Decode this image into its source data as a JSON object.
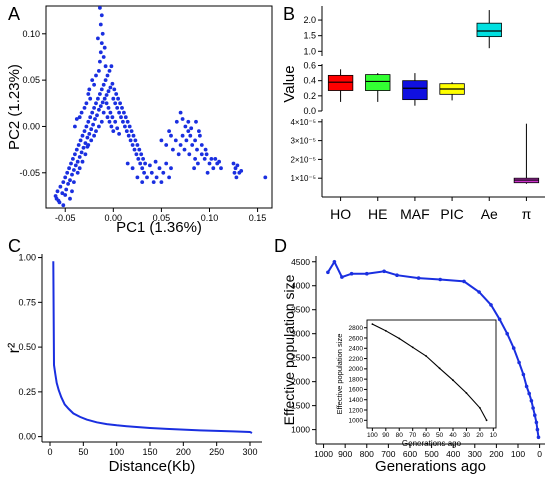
{
  "chart_data": [
    {
      "panel": "A",
      "type": "scatter",
      "xlabel": "PC1 (1.36%)",
      "ylabel": "PC2 (1.23%)",
      "xlim": [
        -0.07,
        0.165
      ],
      "ylim": [
        -0.088,
        0.13
      ],
      "xticks": [
        -0.05,
        0.0,
        0.05,
        0.1,
        0.15
      ],
      "xtick_labels": [
        "-0.05",
        "0.00",
        "0.05",
        "0.10",
        "0.15"
      ],
      "yticks": [
        -0.05,
        0.0,
        0.05,
        0.1
      ],
      "ytick_labels": [
        "-0.05",
        "0.00",
        "0.05",
        "0.10"
      ],
      "color": "#1a2fe0",
      "points": [
        [
          -0.06,
          -0.075
        ],
        [
          -0.058,
          -0.07
        ],
        [
          -0.057,
          -0.08
        ],
        [
          -0.055,
          -0.065
        ],
        [
          -0.053,
          -0.072
        ],
        [
          -0.052,
          -0.06
        ],
        [
          -0.05,
          -0.055
        ],
        [
          -0.049,
          -0.068
        ],
        [
          -0.048,
          -0.05
        ],
        [
          -0.047,
          -0.062
        ],
        [
          -0.046,
          -0.045
        ],
        [
          -0.045,
          -0.058
        ],
        [
          -0.044,
          -0.04
        ],
        [
          -0.043,
          -0.052
        ],
        [
          -0.042,
          -0.035
        ],
        [
          -0.041,
          -0.047
        ],
        [
          -0.04,
          -0.03
        ],
        [
          -0.039,
          -0.042
        ],
        [
          -0.038,
          -0.025
        ],
        [
          -0.037,
          -0.038
        ],
        [
          -0.036,
          -0.02
        ],
        [
          -0.035,
          -0.033
        ],
        [
          -0.034,
          -0.015
        ],
        [
          -0.033,
          -0.028
        ],
        [
          -0.032,
          -0.01
        ],
        [
          -0.031,
          -0.023
        ],
        [
          -0.03,
          -0.005
        ],
        [
          -0.029,
          -0.018
        ],
        [
          -0.028,
          0.0
        ],
        [
          -0.027,
          -0.012
        ],
        [
          -0.026,
          0.005
        ],
        [
          -0.025,
          -0.008
        ],
        [
          -0.024,
          0.01
        ],
        [
          -0.023,
          -0.003
        ],
        [
          -0.022,
          0.015
        ],
        [
          -0.021,
          0.002
        ],
        [
          -0.02,
          0.02
        ],
        [
          -0.019,
          0.008
        ],
        [
          -0.018,
          0.025
        ],
        [
          -0.017,
          0.012
        ],
        [
          -0.016,
          0.03
        ],
        [
          -0.015,
          0.018
        ],
        [
          -0.014,
          0.035
        ],
        [
          -0.013,
          0.022
        ],
        [
          -0.012,
          0.04
        ],
        [
          -0.011,
          0.026
        ],
        [
          -0.01,
          0.045
        ],
        [
          -0.009,
          0.03
        ],
        [
          -0.008,
          0.05
        ],
        [
          -0.007,
          0.034
        ],
        [
          -0.006,
          0.055
        ],
        [
          -0.005,
          0.038
        ],
        [
          -0.004,
          0.06
        ],
        [
          -0.003,
          0.042
        ],
        [
          -0.002,
          0.065
        ],
        [
          -0.001,
          0.046
        ],
        [
          0.0,
          0.03
        ],
        [
          0.001,
          0.04
        ],
        [
          0.002,
          0.025
        ],
        [
          0.003,
          0.035
        ],
        [
          0.004,
          0.02
        ],
        [
          0.005,
          0.03
        ],
        [
          0.006,
          0.015
        ],
        [
          0.007,
          0.025
        ],
        [
          0.008,
          0.01
        ],
        [
          0.009,
          0.02
        ],
        [
          0.01,
          0.005
        ],
        [
          0.011,
          0.015
        ],
        [
          0.012,
          0.0
        ],
        [
          0.013,
          0.01
        ],
        [
          0.014,
          -0.005
        ],
        [
          0.015,
          0.005
        ],
        [
          0.016,
          -0.01
        ],
        [
          0.017,
          0.0
        ],
        [
          0.018,
          -0.015
        ],
        [
          0.019,
          -0.005
        ],
        [
          0.02,
          -0.02
        ],
        [
          0.021,
          -0.01
        ],
        [
          0.022,
          -0.025
        ],
        [
          0.023,
          -0.015
        ],
        [
          0.024,
          -0.03
        ],
        [
          0.025,
          -0.02
        ],
        [
          0.026,
          -0.035
        ],
        [
          0.027,
          -0.025
        ],
        [
          0.028,
          -0.04
        ],
        [
          0.029,
          -0.03
        ],
        [
          0.03,
          -0.045
        ],
        [
          0.031,
          -0.035
        ],
        [
          0.032,
          -0.05
        ],
        [
          0.033,
          -0.04
        ],
        [
          -0.015,
          0.06
        ],
        [
          -0.014,
          0.07
        ],
        [
          -0.013,
          0.08
        ],
        [
          -0.012,
          0.09
        ],
        [
          -0.011,
          0.1
        ],
        [
          -0.013,
          0.11
        ],
        [
          -0.012,
          0.12
        ],
        [
          -0.014,
          0.128
        ],
        [
          -0.01,
          0.075
        ],
        [
          -0.009,
          0.085
        ],
        [
          -0.016,
          0.095
        ],
        [
          -0.008,
          0.065
        ],
        [
          -0.02,
          0.045
        ],
        [
          -0.018,
          0.055
        ],
        [
          -0.022,
          0.05
        ],
        [
          -0.025,
          0.04
        ],
        [
          -0.024,
          0.03
        ],
        [
          -0.03,
          0.02
        ],
        [
          -0.035,
          0.01
        ],
        [
          -0.04,
          0.0
        ],
        [
          -0.038,
          0.008
        ],
        [
          -0.033,
          0.015
        ],
        [
          -0.028,
          0.025
        ],
        [
          -0.026,
          0.035
        ],
        [
          -0.005,
          0.02
        ],
        [
          -0.003,
          0.015
        ],
        [
          -0.001,
          0.01
        ],
        [
          0.002,
          0.005
        ],
        [
          0.004,
          -0.002
        ],
        [
          0.006,
          -0.008
        ],
        [
          -0.007,
          0.025
        ],
        [
          -0.006,
          0.01
        ],
        [
          -0.004,
          0.005
        ],
        [
          -0.002,
          0.0
        ],
        [
          0.0,
          -0.005
        ],
        [
          -0.01,
          0.015
        ],
        [
          -0.012,
          0.005
        ],
        [
          -0.015,
          0.0
        ],
        [
          -0.018,
          -0.005
        ],
        [
          -0.02,
          -0.01
        ],
        [
          -0.023,
          -0.015
        ],
        [
          -0.026,
          -0.02
        ],
        [
          0.04,
          -0.05
        ],
        [
          0.042,
          -0.06
        ],
        [
          0.045,
          -0.055
        ],
        [
          0.048,
          -0.045
        ],
        [
          0.05,
          -0.06
        ],
        [
          0.052,
          -0.05
        ],
        [
          0.055,
          -0.04
        ],
        [
          0.058,
          -0.055
        ],
        [
          0.06,
          -0.045
        ],
        [
          0.038,
          -0.042
        ],
        [
          0.035,
          -0.055
        ],
        [
          0.044,
          -0.038
        ],
        [
          0.05,
          -0.015
        ],
        [
          0.055,
          -0.02
        ],
        [
          0.06,
          -0.01
        ],
        [
          0.065,
          -0.015
        ],
        [
          0.062,
          -0.025
        ],
        [
          0.058,
          -0.005
        ],
        [
          0.07,
          -0.02
        ],
        [
          0.072,
          -0.01
        ],
        [
          0.068,
          -0.03
        ],
        [
          0.074,
          -0.025
        ],
        [
          0.076,
          -0.015
        ],
        [
          0.078,
          -0.005
        ],
        [
          0.08,
          -0.01
        ],
        [
          0.082,
          -0.02
        ],
        [
          0.079,
          -0.03
        ],
        [
          0.085,
          -0.015
        ],
        [
          0.087,
          -0.025
        ],
        [
          0.09,
          -0.01
        ],
        [
          0.085,
          -0.035
        ],
        [
          0.088,
          -0.04
        ],
        [
          0.092,
          -0.03
        ],
        [
          0.084,
          -0.045
        ],
        [
          0.095,
          -0.035
        ],
        [
          0.097,
          -0.03
        ],
        [
          0.1,
          -0.04
        ],
        [
          0.102,
          -0.035
        ],
        [
          0.104,
          -0.045
        ],
        [
          0.098,
          -0.05
        ],
        [
          0.106,
          -0.035
        ],
        [
          0.108,
          -0.04
        ],
        [
          0.11,
          -0.038
        ],
        [
          0.112,
          -0.045
        ],
        [
          0.096,
          -0.025
        ],
        [
          0.092,
          -0.02
        ],
        [
          0.089,
          -0.005
        ],
        [
          0.086,
          0.005
        ],
        [
          0.075,
          0.0
        ],
        [
          0.072,
          0.008
        ],
        [
          0.07,
          0.015
        ],
        [
          0.078,
          0.005
        ],
        [
          0.081,
          -0.002
        ],
        [
          0.066,
          0.005
        ],
        [
          0.125,
          -0.04
        ],
        [
          0.127,
          -0.045
        ],
        [
          0.129,
          -0.042
        ],
        [
          0.131,
          -0.05
        ],
        [
          0.133,
          -0.048
        ],
        [
          0.128,
          -0.055
        ],
        [
          0.126,
          -0.05
        ],
        [
          0.158,
          -0.055
        ],
        [
          0.03,
          -0.06
        ],
        [
          0.025,
          -0.055
        ],
        [
          0.02,
          -0.045
        ],
        [
          0.015,
          -0.04
        ],
        [
          -0.045,
          -0.078
        ],
        [
          -0.052,
          -0.085
        ],
        [
          -0.056,
          -0.082
        ],
        [
          -0.059,
          -0.078
        ],
        [
          -0.05,
          -0.074
        ],
        [
          -0.043,
          -0.07
        ],
        [
          -0.041,
          -0.06
        ],
        [
          -0.037,
          -0.05
        ],
        [
          -0.035,
          -0.045
        ],
        [
          -0.032,
          -0.038
        ],
        [
          -0.029,
          -0.03
        ],
        [
          -0.027,
          -0.022
        ]
      ]
    },
    {
      "panel": "B",
      "type": "box",
      "ylabel": "Value",
      "categories": [
        "HO",
        "HE",
        "MAF",
        "PIC",
        "Ae",
        "π"
      ],
      "boxes": [
        {
          "category": "HO",
          "color": "#ff0000",
          "scale": "mid",
          "min": 0.12,
          "q1": 0.27,
          "median": 0.38,
          "q3": 0.47,
          "max": 0.55
        },
        {
          "category": "HE",
          "color": "#33ff33",
          "scale": "mid",
          "min": 0.12,
          "q1": 0.27,
          "median": 0.39,
          "q3": 0.48,
          "max": 0.5
        },
        {
          "category": "MAF",
          "color": "#1010e0",
          "scale": "mid",
          "min": 0.07,
          "q1": 0.15,
          "median": 0.3,
          "q3": 0.4,
          "max": 0.5
        },
        {
          "category": "PIC",
          "color": "#ffff00",
          "scale": "mid",
          "min": 0.14,
          "q1": 0.22,
          "median": 0.29,
          "q3": 0.36,
          "max": 0.38
        },
        {
          "category": "Ae",
          "color": "#00e0e0",
          "scale": "top",
          "min": 1.1,
          "q1": 1.47,
          "median": 1.65,
          "q3": 1.9,
          "max": 2.32
        },
        {
          "category": "π",
          "color": "#cc33cc",
          "scale": "bottom",
          "min": 7e-06,
          "q1": 7.6e-06,
          "median": 9e-06,
          "q3": 1e-05,
          "max": 3.9e-05
        }
      ],
      "axes": {
        "top": {
          "ylim": [
            0.85,
            2.45
          ],
          "ticks": [
            "1.0",
            "1.5",
            "2.0"
          ],
          "tick_values": [
            1.0,
            1.5,
            2.0
          ]
        },
        "mid": {
          "ylim": [
            0.0,
            0.62
          ],
          "ticks": [
            "0.0",
            "0.2",
            "0.4",
            "0.6"
          ],
          "tick_values": [
            0.0,
            0.2,
            0.4,
            0.6
          ]
        },
        "bottom": {
          "ylim": [
            0,
            4.15e-05
          ],
          "ticks": [
            "1×10⁻⁵",
            "2×10⁻⁵",
            "3×10⁻⁵",
            "4×10⁻⁵"
          ],
          "tick_values": [
            1e-05,
            2e-05,
            3e-05,
            4e-05
          ]
        }
      }
    },
    {
      "panel": "C",
      "type": "line",
      "xlabel": "Distance(Kb)",
      "ylabel": "r²",
      "xlim": [
        -12,
        318
      ],
      "ylim": [
        -0.03,
        1.02
      ],
      "xticks": [
        0,
        50,
        100,
        150,
        200,
        250,
        300
      ],
      "yticks": [
        0.0,
        0.25,
        0.5,
        0.75,
        1.0
      ],
      "ytick_labels": [
        "0.00",
        "0.25",
        "0.50",
        "0.75",
        "1.00"
      ],
      "color": "#1a2fe0",
      "x": [
        5,
        6,
        8,
        10,
        13,
        17,
        22,
        28,
        35,
        45,
        55,
        70,
        85,
        100,
        125,
        150,
        175,
        200,
        225,
        250,
        275,
        300,
        303
      ],
      "y": [
        0.98,
        0.4,
        0.35,
        0.3,
        0.26,
        0.22,
        0.18,
        0.155,
        0.13,
        0.11,
        0.095,
        0.08,
        0.07,
        0.063,
        0.055,
        0.048,
        0.043,
        0.039,
        0.035,
        0.032,
        0.029,
        0.026,
        0.02
      ]
    },
    {
      "panel": "D",
      "type": "line",
      "xlabel": "Generations ago",
      "ylabel": "Effective population size",
      "xlim": [
        1035,
        -25
      ],
      "ylim": [
        700,
        4620
      ],
      "xticks": [
        1000,
        900,
        800,
        700,
        600,
        500,
        400,
        300,
        200,
        100,
        0
      ],
      "yticks": [
        1000,
        1500,
        2000,
        2500,
        3000,
        3500,
        4000,
        4500
      ],
      "color": "#1a2fe0",
      "x": [
        980,
        950,
        915,
        870,
        800,
        720,
        660,
        560,
        460,
        350,
        280,
        225,
        185,
        150,
        120,
        95,
        75,
        60,
        48,
        38,
        30,
        22,
        15,
        10,
        5
      ],
      "y": [
        4280,
        4500,
        4180,
        4250,
        4250,
        4300,
        4220,
        4160,
        4130,
        4090,
        3870,
        3600,
        3300,
        3000,
        2700,
        2400,
        2150,
        1900,
        1750,
        1600,
        1450,
        1300,
        1150,
        1000,
        840
      ],
      "inset": {
        "type": "line",
        "xlabel": "Generations ago",
        "ylabel": "Effective population size",
        "xlim": [
          104,
          8
        ],
        "ylim": [
          850,
          2950
        ],
        "xticks": [
          100,
          90,
          80,
          70,
          60,
          50,
          40,
          30,
          20,
          10
        ],
        "yticks": [
          1000,
          1200,
          1400,
          1600,
          1800,
          2000,
          2200,
          2400,
          2600,
          2800
        ],
        "color": "#000000",
        "x": [
          100,
          90,
          80,
          70,
          60,
          50,
          40,
          30,
          20,
          15
        ],
        "y": [
          2870,
          2740,
          2590,
          2420,
          2250,
          2010,
          1780,
          1530,
          1240,
          1000
        ]
      }
    }
  ]
}
